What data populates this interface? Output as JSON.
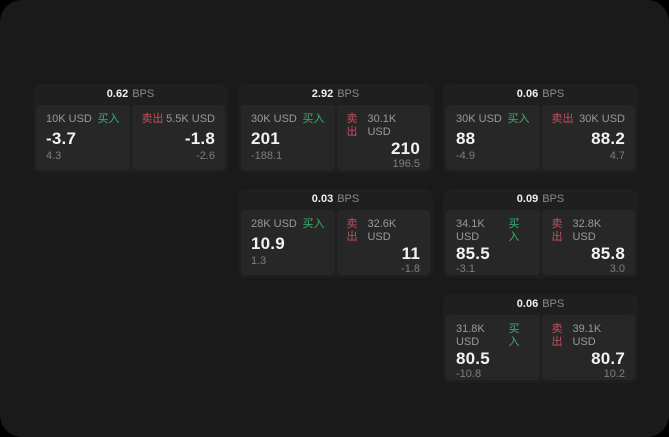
{
  "labels": {
    "bps_unit": "BPS",
    "buy": "买入",
    "sell": "卖出"
  },
  "colors": {
    "buy_green": "#3cb074",
    "sell_red": "#c44f5f",
    "page_bg": "#1a1a1a",
    "card_bg": "#1f1f1f",
    "panel_bg": "#272727"
  },
  "cards": [
    {
      "row": 1,
      "col": 1,
      "bps": "0.62",
      "buy": {
        "size": "10K USD",
        "value": "-3.7",
        "sub": "4.3"
      },
      "sell": {
        "size": "5.5K USD",
        "value": "-1.8",
        "sub": "-2.6"
      }
    },
    {
      "row": 1,
      "col": 2,
      "bps": "2.92",
      "buy": {
        "size": "30K USD",
        "value": "201",
        "sub": "-188.1"
      },
      "sell": {
        "size": "30.1K USD",
        "value": "210",
        "sub": "196.5"
      }
    },
    {
      "row": 1,
      "col": 3,
      "bps": "0.06",
      "buy": {
        "size": "30K USD",
        "value": "88",
        "sub": "-4.9"
      },
      "sell": {
        "size": "30K USD",
        "value": "88.2",
        "sub": "4.7"
      }
    },
    {
      "row": 2,
      "col": 2,
      "bps": "0.03",
      "buy": {
        "size": "28K USD",
        "value": "10.9",
        "sub": "1.3"
      },
      "sell": {
        "size": "32.6K USD",
        "value": "11",
        "sub": "-1.8"
      }
    },
    {
      "row": 2,
      "col": 3,
      "bps": "0.09",
      "buy": {
        "size": "34.1K USD",
        "value": "85.5",
        "sub": "-3.1"
      },
      "sell": {
        "size": "32.8K USD",
        "value": "85.8",
        "sub": "3.0"
      }
    },
    {
      "row": 3,
      "col": 3,
      "bps": "0.06",
      "buy": {
        "size": "31.8K USD",
        "value": "80.5",
        "sub": "-10.8"
      },
      "sell": {
        "size": "39.1K USD",
        "value": "80.7",
        "sub": "10.2"
      }
    }
  ]
}
